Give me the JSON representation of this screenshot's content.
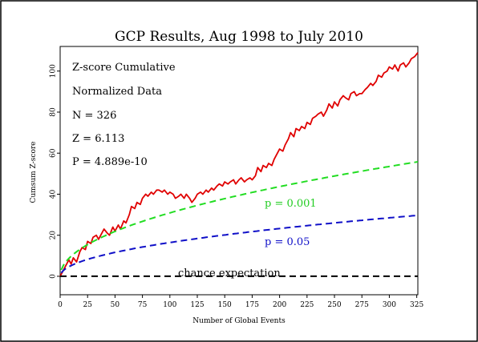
{
  "chart_data": {
    "type": "line",
    "title": "GCP Results, Aug 1998 to July 2010",
    "xlabel": "Number of Global Events",
    "ylabel": "Cumsum Z-score",
    "xlim": [
      0,
      326
    ],
    "ylim": [
      -9,
      112
    ],
    "x_ticks": [
      0,
      25,
      50,
      75,
      100,
      125,
      150,
      175,
      200,
      225,
      250,
      275,
      300,
      325
    ],
    "y_ticks": [
      0,
      20,
      40,
      60,
      80,
      100
    ],
    "grid": false,
    "stats": [
      "Z-score Cumulative",
      "Normalized Data",
      "N = 326",
      "Z = 6.113",
      "P = 4.889e-10"
    ],
    "series": [
      {
        "label": "cumulative z-score",
        "color": "#e00000",
        "style": "solid",
        "x": [
          0,
          3,
          5,
          8,
          10,
          12,
          15,
          18,
          20,
          23,
          25,
          28,
          30,
          33,
          35,
          38,
          40,
          43,
          45,
          48,
          50,
          53,
          55,
          58,
          60,
          63,
          65,
          68,
          70,
          73,
          75,
          78,
          80,
          83,
          85,
          88,
          90,
          93,
          95,
          98,
          100,
          103,
          105,
          108,
          110,
          113,
          115,
          118,
          120,
          123,
          125,
          128,
          130,
          133,
          135,
          138,
          140,
          143,
          145,
          148,
          150,
          153,
          155,
          158,
          160,
          163,
          165,
          168,
          170,
          173,
          175,
          178,
          180,
          183,
          185,
          188,
          190,
          193,
          195,
          198,
          200,
          203,
          205,
          208,
          210,
          213,
          215,
          218,
          220,
          223,
          225,
          228,
          230,
          233,
          235,
          238,
          240,
          243,
          245,
          248,
          250,
          253,
          255,
          258,
          260,
          263,
          265,
          268,
          270,
          273,
          275,
          278,
          280,
          283,
          285,
          288,
          290,
          293,
          295,
          298,
          300,
          303,
          305,
          308,
          310,
          313,
          315,
          318,
          320,
          323,
          326
        ],
        "values": [
          0,
          3,
          5,
          8,
          6,
          9,
          7,
          12,
          14,
          13,
          17,
          16,
          19,
          20,
          18,
          21,
          23,
          21,
          20,
          24,
          22,
          25,
          23,
          27,
          26,
          30,
          34,
          33,
          36,
          35,
          38,
          40,
          39,
          41,
          40,
          42,
          42,
          41,
          42,
          40,
          41,
          40,
          38,
          39,
          40,
          38,
          40,
          38,
          36,
          38,
          40,
          41,
          40,
          42,
          41,
          43,
          42,
          44,
          45,
          44,
          46,
          45,
          46,
          47,
          45,
          47,
          48,
          46,
          47,
          48,
          47,
          49,
          53,
          51,
          54,
          53,
          55,
          54,
          57,
          60,
          62,
          61,
          64,
          67,
          70,
          68,
          72,
          71,
          73,
          72,
          75,
          74,
          77,
          78,
          79,
          80,
          78,
          81,
          84,
          82,
          85,
          83,
          86,
          88,
          87,
          86,
          89,
          90,
          88,
          89,
          89,
          91,
          92,
          94,
          93,
          95,
          98,
          97,
          99,
          100,
          102,
          101,
          103,
          100,
          103,
          104,
          102,
          104,
          106,
          107,
          109
        ]
      },
      {
        "label": "p = 0.001",
        "color": "#22dd22",
        "style": "dashed",
        "envelope_z": 3.09
      },
      {
        "label": "p = 0.05",
        "color": "#1010c8",
        "style": "dashed",
        "envelope_z": 1.645
      },
      {
        "label": "chance expectation",
        "color": "#000000",
        "style": "dashed",
        "constant": 0
      }
    ],
    "annotations": {
      "p001": "p = 0.001",
      "p05": "p = 0.05",
      "chance": "chance expectation"
    }
  }
}
